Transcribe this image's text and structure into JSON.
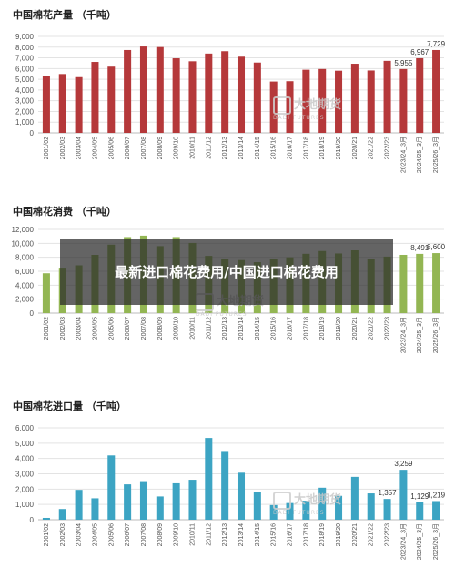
{
  "caption": "最新进口棉花费用/中国进口棉花费用",
  "watermark": {
    "text": "大地期货",
    "sub": "DADI FUTURES"
  },
  "categories": [
    "2001/02",
    "2002/03",
    "2003/04",
    "2004/05",
    "2005/06",
    "2006/07",
    "2007/08",
    "2008/09",
    "2009/10",
    "2010/11",
    "2011/12",
    "2012/13",
    "2013/14",
    "2014/15",
    "2015/16",
    "2016/17",
    "2017/18",
    "2018/19",
    "2019/20",
    "2020/21",
    "2021/22",
    "2022/23",
    "2023/24_3月",
    "2024/25_3月",
    "2025/26_3月"
  ],
  "chart_data": [
    {
      "type": "bar",
      "title": "中国棉花产量 （千吨）",
      "color": "#b5383a",
      "ylim": [
        0,
        9000
      ],
      "yticks": [
        "0",
        "1,000",
        "2,000",
        "3,000",
        "4,000",
        "5,000",
        "6,000",
        "7,000",
        "8,000",
        "9,000"
      ],
      "values": [
        5320,
        5490,
        5200,
        6620,
        6180,
        7730,
        8060,
        8010,
        6960,
        6680,
        7400,
        7620,
        7110,
        6560,
        4790,
        4820,
        5890,
        5960,
        5800,
        6450,
        5820,
        6720,
        5955,
        6967,
        7729
      ],
      "data_labels": {
        "22": "5,955",
        "23": "6,967",
        "24": "7,729"
      },
      "grid": true
    },
    {
      "type": "bar",
      "title": "中国棉花消费 （千吨）",
      "color": "#93b653",
      "ylim": [
        0,
        12000
      ],
      "yticks": [
        "0",
        "2,000",
        "4,000",
        "6,000",
        "8,000",
        "10,000",
        "12,000"
      ],
      "values": [
        5710,
        6510,
        6850,
        8350,
        9810,
        10900,
        11100,
        9600,
        10900,
        10050,
        8200,
        7800,
        7600,
        7300,
        7750,
        8000,
        8500,
        8900,
        8550,
        9000,
        7800,
        8100,
        8350,
        8491,
        8600
      ],
      "data_labels": {
        "23": "8,491",
        "24": "8,600"
      },
      "grid": true
    },
    {
      "type": "bar",
      "title": "中国棉花进口量 （千吨）",
      "color": "#3ca4c3",
      "ylim": [
        0,
        6000
      ],
      "yticks": [
        "0",
        "1,000",
        "2,000",
        "3,000",
        "4,000",
        "5,000",
        "6,000"
      ],
      "values": [
        120,
        700,
        1950,
        1400,
        4200,
        2310,
        2520,
        1520,
        2380,
        2610,
        5340,
        4430,
        3070,
        1800,
        960,
        1090,
        1240,
        2090,
        1560,
        2800,
        1720,
        1357,
        3259,
        1129,
        1219
      ],
      "data_labels": {
        "21": "1,357",
        "22": "3,259",
        "23": "1,129",
        "24": "1,219"
      },
      "grid": true
    }
  ]
}
